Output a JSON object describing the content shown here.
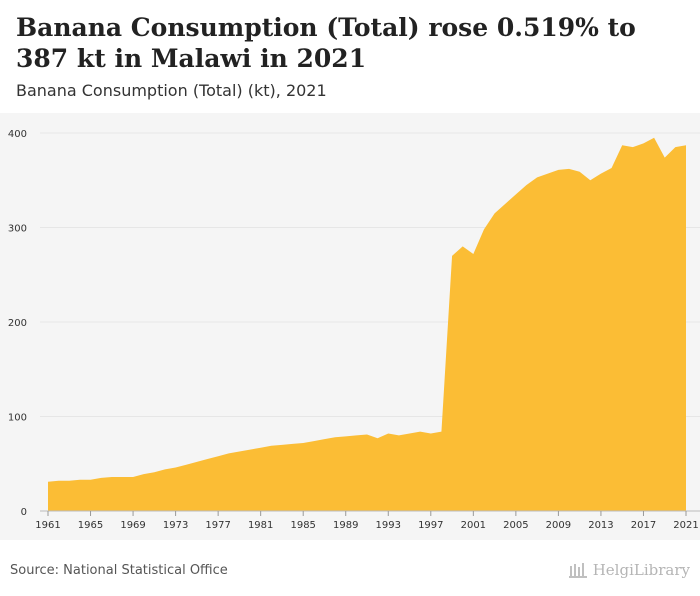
{
  "header": {
    "title": "Banana Consumption (Total) rose 0.519% to 387 kt in Malawi in 2021",
    "subtitle": "Banana Consumption (Total) (kt), 2021"
  },
  "footer": {
    "source": "Source: National Statistical Office",
    "brand": "HelgiLibrary"
  },
  "colors": {
    "area": "#fbbd35",
    "grid": "#e6e6e6",
    "plot_bg": "#f5f5f5",
    "text": "#333333"
  },
  "chart_data": {
    "type": "area",
    "title": "Banana Consumption (Total) (kt), 2021",
    "xlabel": "",
    "ylabel": "",
    "ylim": [
      0,
      400
    ],
    "yticks": [
      0,
      100,
      200,
      300,
      400
    ],
    "xticks": [
      1961,
      1965,
      1969,
      1973,
      1977,
      1981,
      1985,
      1989,
      1993,
      1997,
      2001,
      2005,
      2009,
      2013,
      2017,
      2021
    ],
    "grid": true,
    "series": [
      {
        "name": "Banana Consumption (Total)",
        "x": [
          1961,
          1962,
          1963,
          1964,
          1965,
          1966,
          1967,
          1968,
          1969,
          1970,
          1971,
          1972,
          1973,
          1974,
          1975,
          1976,
          1977,
          1978,
          1979,
          1980,
          1981,
          1982,
          1983,
          1984,
          1985,
          1986,
          1987,
          1988,
          1989,
          1990,
          1991,
          1992,
          1993,
          1994,
          1995,
          1996,
          1997,
          1998,
          1999,
          2000,
          2001,
          2002,
          2003,
          2004,
          2005,
          2006,
          2007,
          2008,
          2009,
          2010,
          2011,
          2012,
          2013,
          2014,
          2015,
          2016,
          2017,
          2018,
          2019,
          2020,
          2021
        ],
        "values": [
          31,
          32,
          32,
          33,
          33,
          35,
          36,
          36,
          36,
          39,
          41,
          44,
          46,
          49,
          52,
          55,
          58,
          61,
          63,
          65,
          67,
          69,
          70,
          71,
          72,
          74,
          76,
          78,
          79,
          80,
          81,
          77,
          82,
          80,
          82,
          84,
          82,
          84,
          270,
          280,
          272,
          298,
          315,
          325,
          335,
          345,
          353,
          357,
          361,
          362,
          359,
          350,
          357,
          363,
          387,
          385,
          389,
          395,
          374,
          385,
          387
        ]
      }
    ]
  }
}
